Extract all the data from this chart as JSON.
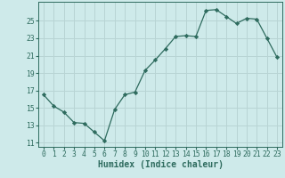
{
  "x": [
    0,
    1,
    2,
    3,
    4,
    5,
    6,
    7,
    8,
    9,
    10,
    11,
    12,
    13,
    14,
    15,
    16,
    17,
    18,
    19,
    20,
    21,
    22,
    23
  ],
  "y": [
    16.5,
    15.2,
    14.5,
    13.3,
    13.2,
    12.2,
    11.2,
    14.8,
    16.5,
    16.8,
    19.3,
    20.5,
    21.8,
    23.2,
    23.3,
    23.2,
    26.2,
    26.3,
    25.5,
    24.7,
    25.3,
    25.2,
    23.0,
    20.8
  ],
  "line_color": "#2e6b5e",
  "marker": "D",
  "marker_size": 2.2,
  "bg_color": "#ceeaea",
  "grid_color": "#b8d4d4",
  "xlabel": "Humidex (Indice chaleur)",
  "ylim": [
    10.5,
    27.2
  ],
  "xlim": [
    -0.5,
    23.5
  ],
  "yticks": [
    11,
    13,
    15,
    17,
    19,
    21,
    23,
    25
  ],
  "xticks": [
    0,
    1,
    2,
    3,
    4,
    5,
    6,
    7,
    8,
    9,
    10,
    11,
    12,
    13,
    14,
    15,
    16,
    17,
    18,
    19,
    20,
    21,
    22,
    23
  ],
  "tick_fontsize": 5.8,
  "label_fontsize": 7.0
}
